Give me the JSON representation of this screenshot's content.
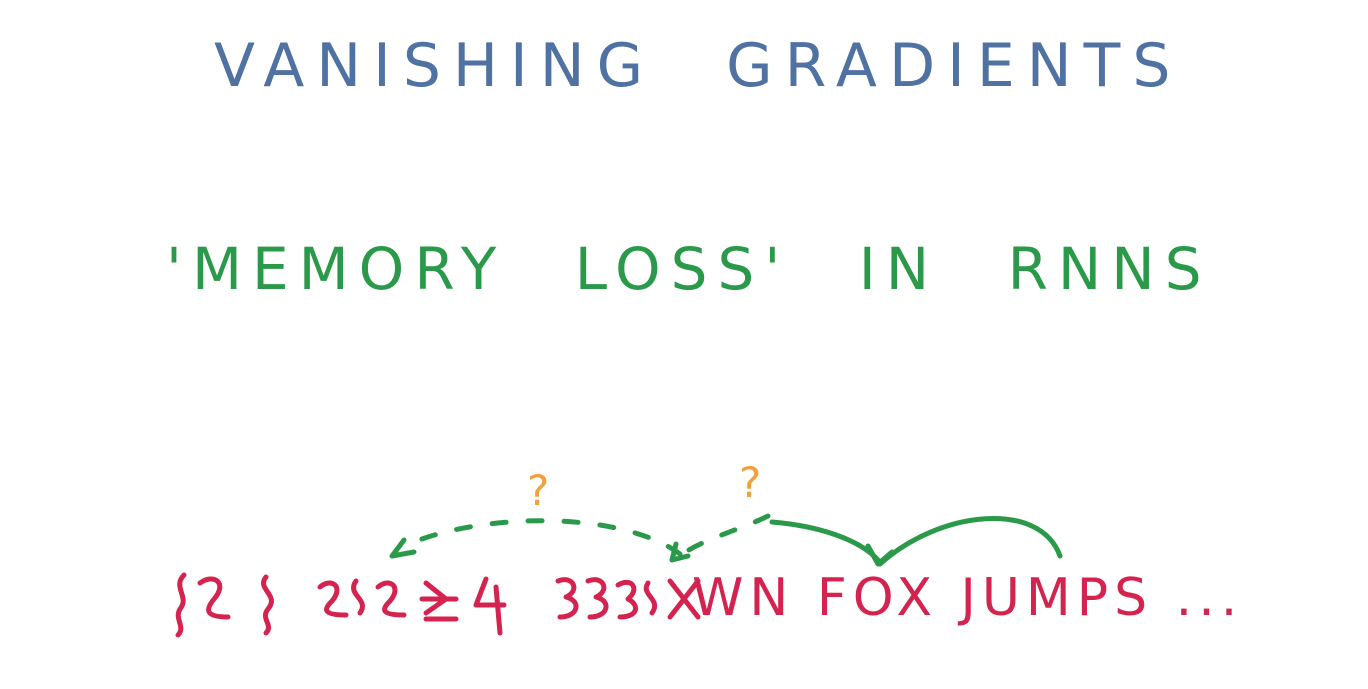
{
  "title": "VANISHING GRADIENTS",
  "subtitle": "'MEMORY LOSS' IN RNNS",
  "sentence_visible": "WN FOX JUMPS ...",
  "question_marks": [
    "?",
    "?"
  ],
  "colors": {
    "title": "#4f72a3",
    "subtitle": "#2a9a4a",
    "sentence": "#d4234f",
    "question": "#f2a03a",
    "arrows": "#2a9a4a"
  }
}
